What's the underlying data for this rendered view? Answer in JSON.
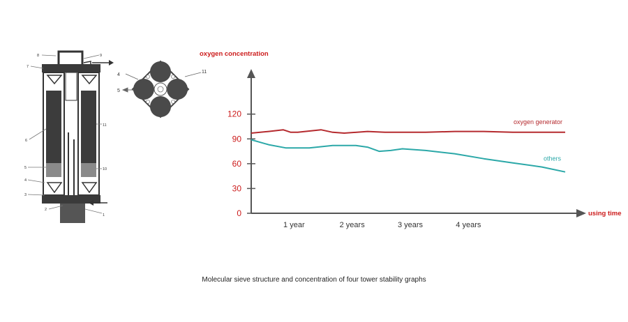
{
  "diagram": {
    "callouts": [
      "8",
      "9",
      "7",
      "6",
      "11",
      "5",
      "10",
      "4",
      "3",
      "2",
      "1"
    ],
    "top_view_callouts": [
      "4",
      "5",
      "11"
    ]
  },
  "chart_data": {
    "type": "line",
    "ylabel": "oxygen concentration",
    "xlabel": "using time",
    "yticks": [
      "0",
      "30",
      "60",
      "90",
      "120"
    ],
    "ylim": [
      0,
      140
    ],
    "xlim": [
      0,
      5.4
    ],
    "categories": [
      "1 year",
      "2 years",
      "3 years",
      "4 years"
    ],
    "grid": false,
    "series": [
      {
        "name": "oxygen generator",
        "color": "#b52a2e",
        "x": [
          0,
          0.3,
          0.55,
          0.68,
          0.8,
          1.2,
          1.4,
          1.6,
          2.0,
          2.3,
          2.6,
          3.0,
          3.5,
          4.0,
          4.5,
          5.0,
          5.4
        ],
        "values": [
          97,
          99,
          101,
          98,
          98,
          101,
          98,
          97,
          99,
          98,
          98,
          98,
          99,
          99,
          98,
          98,
          98
        ]
      },
      {
        "name": "others",
        "color": "#2ba8a8",
        "x": [
          0,
          0.3,
          0.6,
          1.0,
          1.4,
          1.8,
          2.0,
          2.2,
          2.4,
          2.6,
          3.0,
          3.5,
          4.0,
          4.5,
          5.0,
          5.4
        ],
        "values": [
          89,
          83,
          79,
          79,
          82,
          82,
          80,
          75,
          76,
          78,
          76,
          72,
          66,
          61,
          56,
          50
        ]
      }
    ],
    "series_colors": {
      "oxygen generator": "#b52a2e",
      "others": "#2ba8a8"
    },
    "axis_color": "#555555",
    "label_color": "#cc1b1b"
  },
  "caption": "Molecular sieve structure and concentration of four tower stability graphs"
}
